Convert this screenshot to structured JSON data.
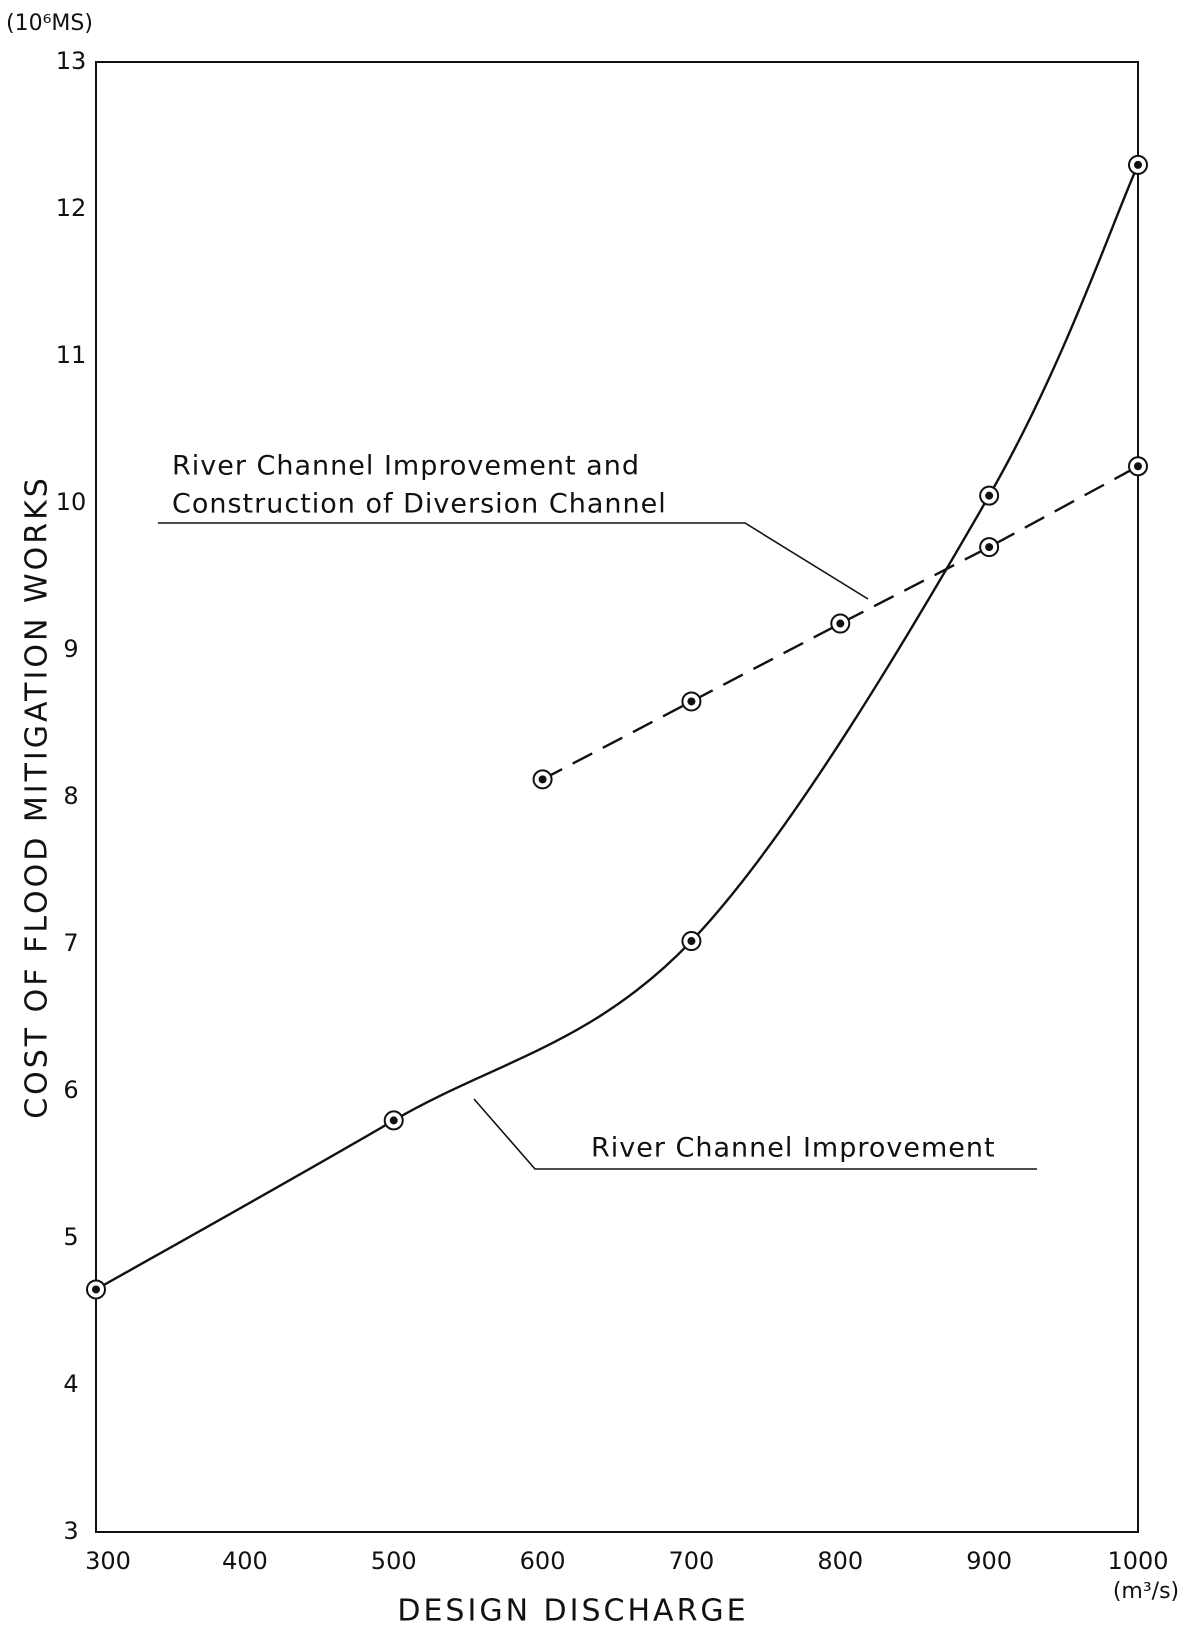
{
  "chart_data": {
    "type": "line",
    "y_unit": "(10⁶MS)",
    "x_unit": "(m³/s)",
    "ylabel": "COST OF FLOOD MITIGATION WORKS",
    "xlabel": "DESIGN DISCHARGE",
    "annotations": [
      [
        "River Channel Improvement and",
        "Construction of Diversion Channel"
      ],
      [
        "River Channel Improvement"
      ]
    ],
    "series": [
      {
        "color": "#111111",
        "style": "solid",
        "x": [
          300,
          500,
          700,
          900,
          1000
        ],
        "values": [
          4.65,
          5.8,
          7.02,
          10.05,
          12.3
        ]
      },
      {
        "color": "#111111",
        "style": "dashed",
        "x": [
          600,
          700,
          800,
          900,
          1000
        ],
        "values": [
          8.12,
          8.65,
          9.18,
          9.7,
          10.25
        ]
      }
    ],
    "xlim": [
      300,
      1000
    ],
    "xticks": [
      300,
      400,
      500,
      600,
      700,
      800,
      900,
      1000
    ],
    "ylim": [
      3,
      13
    ],
    "yticks": [
      3,
      4,
      5,
      6,
      7,
      8,
      9,
      10,
      11,
      12,
      13
    ],
    "grid": false
  }
}
